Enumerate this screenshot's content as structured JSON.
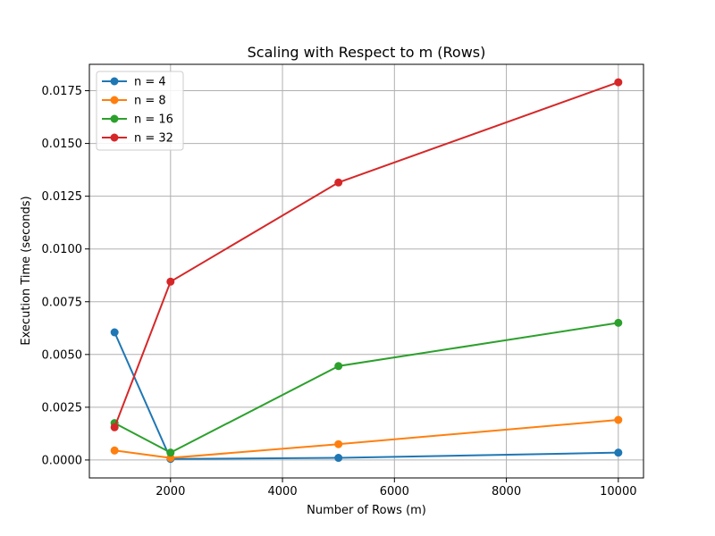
{
  "chart_data": {
    "type": "line",
    "title": "Scaling with Respect to m (Rows)",
    "xlabel": "Number of Rows (m)",
    "ylabel": "Execution Time (seconds)",
    "xlim": [
      550,
      10450
    ],
    "ylim": [
      -0.00085,
      0.01875
    ],
    "x": [
      1000,
      2000,
      5000,
      10000
    ],
    "xticks": [
      2000,
      4000,
      6000,
      8000,
      10000
    ],
    "xtick_labels": [
      "2000",
      "4000",
      "6000",
      "8000",
      "10000"
    ],
    "yticks": [
      0.0,
      0.0025,
      0.005,
      0.0075,
      0.01,
      0.0125,
      0.015,
      0.0175
    ],
    "ytick_labels": [
      "0.0000",
      "0.0025",
      "0.0050",
      "0.0075",
      "0.0100",
      "0.0125",
      "0.0150",
      "0.0175"
    ],
    "grid": true,
    "legend_position": "top-left",
    "series": [
      {
        "name": "n = 4",
        "color": "#1f77b4",
        "values": [
          0.00605,
          5e-05,
          0.0001,
          0.00035
        ]
      },
      {
        "name": "n = 8",
        "color": "#ff7f0e",
        "values": [
          0.00045,
          0.0001,
          0.00075,
          0.0019
        ]
      },
      {
        "name": "n = 16",
        "color": "#2ca02c",
        "values": [
          0.00175,
          0.00035,
          0.00445,
          0.0065
        ]
      },
      {
        "name": "n = 32",
        "color": "#d62728",
        "values": [
          0.00155,
          0.00845,
          0.01315,
          0.0179
        ]
      }
    ]
  }
}
